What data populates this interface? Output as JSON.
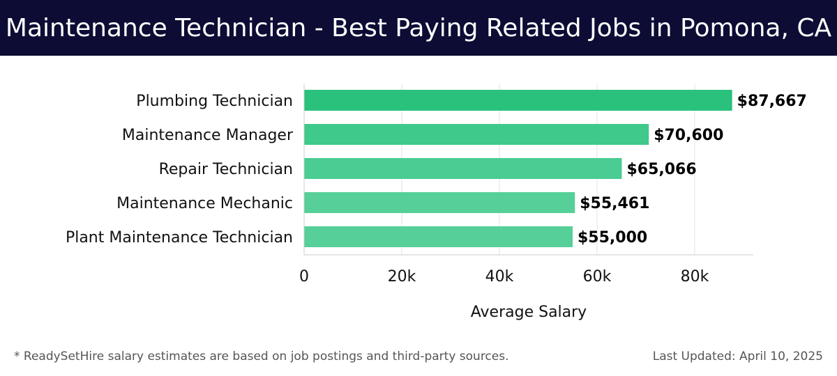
{
  "header": {
    "title": "Maintenance Technician - Best Paying Related Jobs in Pomona, CA"
  },
  "chart_data": {
    "type": "bar",
    "orientation": "horizontal",
    "categories": [
      "Plumbing Technician",
      "Maintenance Manager",
      "Repair Technician",
      "Maintenance Mechanic",
      "Plant Maintenance Technician"
    ],
    "values": [
      87667,
      70600,
      65066,
      55461,
      55000
    ],
    "value_labels": [
      "$87,667",
      "$70,600",
      "$65,066",
      "$55,461",
      "$55,000"
    ],
    "xlabel": "Average Salary",
    "ylabel": "",
    "xlim": [
      0,
      92000
    ],
    "xticks": [
      0,
      20000,
      40000,
      60000,
      80000
    ],
    "xtick_labels": [
      "0",
      "20k",
      "40k",
      "60k",
      "80k"
    ],
    "grid": "vertical",
    "bar_colors": [
      "#2ac17c",
      "#3fc98b",
      "#4acc92",
      "#56cf98",
      "#56cf98"
    ]
  },
  "footer": {
    "note": "* ReadySetHire salary estimates are based on job postings and third-party sources.",
    "updated": "Last Updated: April 10, 2025"
  },
  "colors": {
    "header_bg": "#0c0c35",
    "grid": "#e3e3e3",
    "axis": "#cccccc",
    "text": "#111111"
  }
}
